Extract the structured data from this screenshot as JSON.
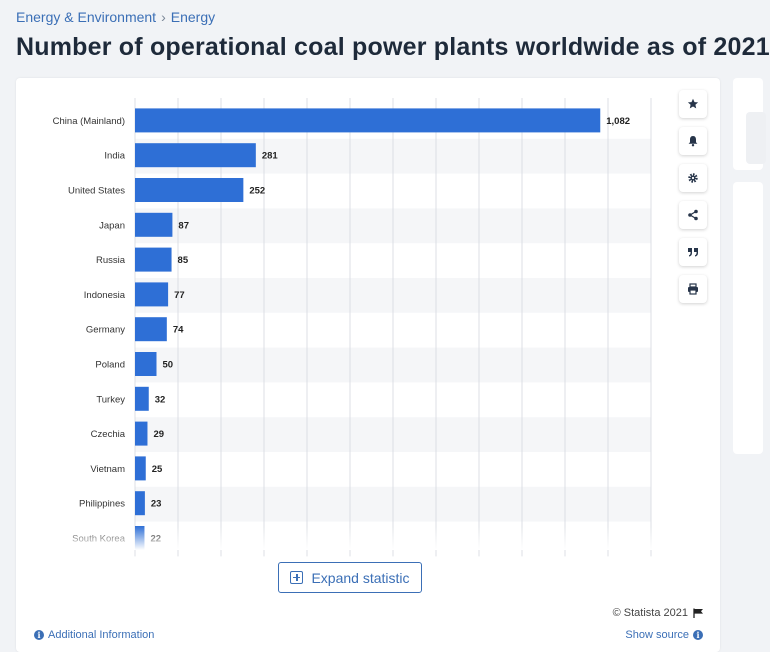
{
  "breadcrumb": {
    "items": [
      "Energy & Environment",
      "Energy"
    ],
    "separator": "›"
  },
  "page_title": "Number of operational coal power plants worldwide as of 2021",
  "colors": {
    "bar": "#2e6fd6",
    "link": "#3b6fb6",
    "stripe": "#f5f6f8"
  },
  "chart_data": {
    "type": "bar",
    "orientation": "horizontal",
    "title": "",
    "xlabel": "",
    "ylabel": "",
    "grid": true,
    "xlim": [
      0,
      1200
    ],
    "categories": [
      "China (Mainland)",
      "India",
      "United States",
      "Japan",
      "Russia",
      "Indonesia",
      "Germany",
      "Poland",
      "Turkey",
      "Czechia",
      "Vietnam",
      "Philippines",
      "South Korea"
    ],
    "values": [
      1082,
      281,
      252,
      87,
      85,
      77,
      74,
      50,
      32,
      29,
      25,
      23,
      22
    ],
    "value_labels": [
      "1,082",
      "281",
      "252",
      "87",
      "85",
      "77",
      "74",
      "50",
      "32",
      "29",
      "25",
      "23",
      "22"
    ]
  },
  "toolbar": {
    "icons": [
      "star-icon",
      "bell-icon",
      "gear-icon",
      "share-icon",
      "quote-icon",
      "print-icon"
    ]
  },
  "expand_label": "Expand statistic",
  "credit": "© Statista 2021",
  "additional_info": "Additional Information",
  "show_source": "Show source"
}
